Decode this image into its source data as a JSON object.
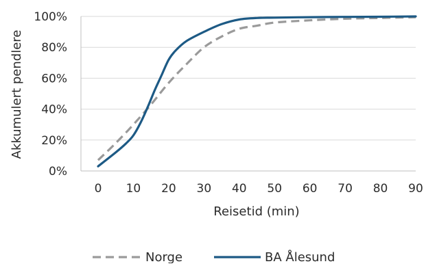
{
  "chart_data": {
    "type": "line",
    "xlabel": "Reisetid (min)",
    "ylabel": "Akkumulert pendlere",
    "xlim": [
      0,
      90
    ],
    "ylim": [
      0,
      100
    ],
    "x_ticks": [
      "0",
      "10",
      "20",
      "30",
      "40",
      "50",
      "60",
      "70",
      "80",
      "90"
    ],
    "y_ticks": [
      "0%",
      "20%",
      "40%",
      "60%",
      "80%",
      "100%"
    ],
    "grid": "horizontal",
    "legend_position": "bottom",
    "series": [
      {
        "name": "Norge",
        "color": "#9a9a9a",
        "style": "dashed",
        "x": [
          0,
          5,
          10,
          15,
          20,
          25,
          30,
          35,
          40,
          45,
          50,
          60,
          70,
          80,
          90
        ],
        "values": [
          7,
          18,
          30,
          43,
          57,
          69,
          80,
          87,
          92,
          94,
          96,
          97.5,
          98.5,
          99,
          99.5
        ]
      },
      {
        "name": "BA Ålesund",
        "color": "#1d5a85",
        "style": "solid",
        "x": [
          0,
          5,
          8,
          10,
          12,
          14,
          16,
          18,
          20,
          22,
          25,
          30,
          35,
          40,
          45,
          50,
          60,
          70,
          80,
          90
        ],
        "values": [
          3,
          12,
          18,
          23,
          31,
          41,
          52,
          62,
          72,
          78,
          84,
          90,
          95,
          98,
          99,
          99.2,
          99.5,
          99.7,
          99.8,
          100
        ]
      }
    ]
  }
}
